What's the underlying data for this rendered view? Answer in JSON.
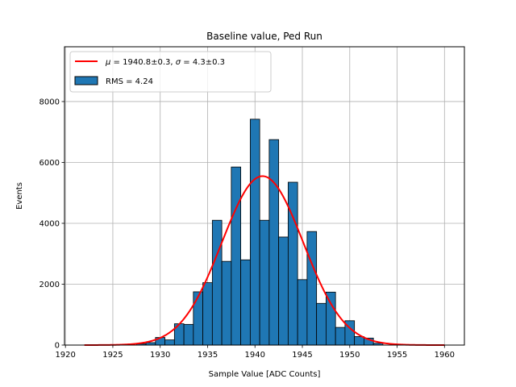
{
  "chart_data": {
    "type": "bar",
    "title": "Baseline value, Ped Run",
    "xlabel": "Sample Value [ADC Counts]",
    "ylabel": "Events",
    "xlim": [
      1919.9,
      1962.1
    ],
    "ylim": [
      0,
      9800
    ],
    "xticks": [
      1920,
      1925,
      1930,
      1935,
      1940,
      1945,
      1950,
      1955,
      1960
    ],
    "yticks": [
      0,
      2000,
      4000,
      6000,
      8000
    ],
    "grid": true,
    "legend_position": "upper left",
    "bin_width": 1,
    "histogram": {
      "name": "RMS = 4.24",
      "color": "#1f77b4",
      "edge_color": "#000000",
      "bin_centers": [
        1928,
        1929,
        1930,
        1931,
        1932,
        1933,
        1934,
        1935,
        1936,
        1937,
        1938,
        1939,
        1940,
        1941,
        1942,
        1943,
        1944,
        1945,
        1946,
        1947,
        1948,
        1949,
        1950,
        1951,
        1952,
        1953
      ],
      "values": [
        40,
        80,
        250,
        170,
        700,
        680,
        1750,
        2050,
        4100,
        2750,
        5850,
        2800,
        7420,
        4100,
        6750,
        3550,
        5350,
        2150,
        3730,
        1370,
        1740,
        580,
        800,
        280,
        230,
        60
      ]
    },
    "fit": {
      "name": "$\\mu = $1940.8±0.3, $\\sigma = $4.3±0.3",
      "legend_mu": "μ",
      "legend_sigma": "σ",
      "legend_eq": " = 1940.8±0.3, ",
      "legend_eq2": " = 4.3±0.3",
      "color": "#ff0000",
      "mu": 1940.8,
      "sigma": 4.3,
      "amplitude": 5550,
      "x_range": [
        1922,
        1960
      ]
    }
  }
}
